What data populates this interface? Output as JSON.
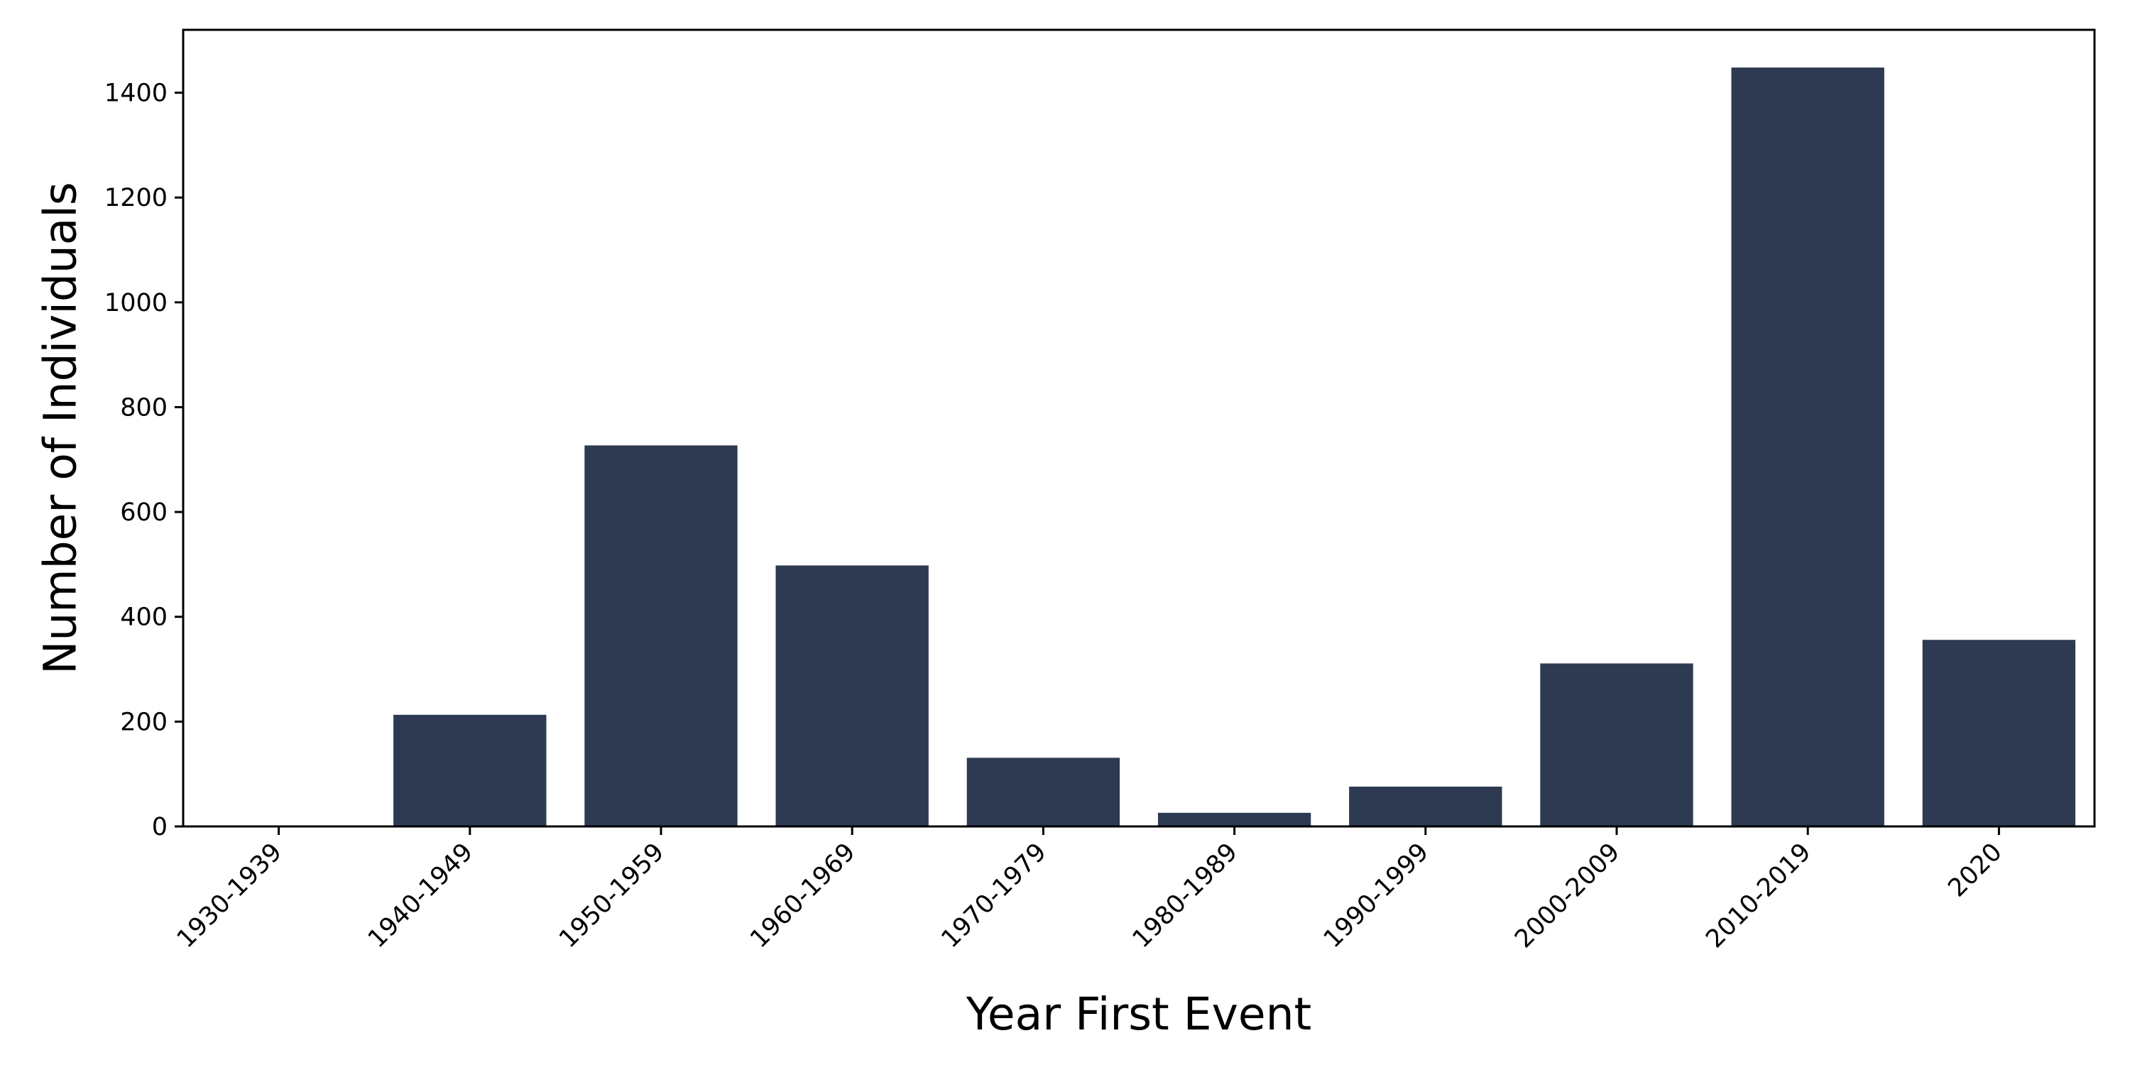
{
  "chart_data": {
    "type": "bar",
    "title": "",
    "xlabel": "Year First Event",
    "ylabel": "Number of Individuals",
    "categories": [
      "1930-1939",
      "1940-1949",
      "1950-1959",
      "1960-1969",
      "1970-1979",
      "1980-1989",
      "1990-1999",
      "2000-2009",
      "2010-2019",
      "2020"
    ],
    "values": [
      2,
      213,
      727,
      498,
      131,
      26,
      76,
      311,
      1448,
      356
    ],
    "ylim": [
      0,
      1520
    ],
    "yticks": [
      0,
      200,
      400,
      600,
      800,
      1000,
      1200,
      1400
    ],
    "bar_color": "#2d3a52",
    "grid": false,
    "legend": "none"
  }
}
